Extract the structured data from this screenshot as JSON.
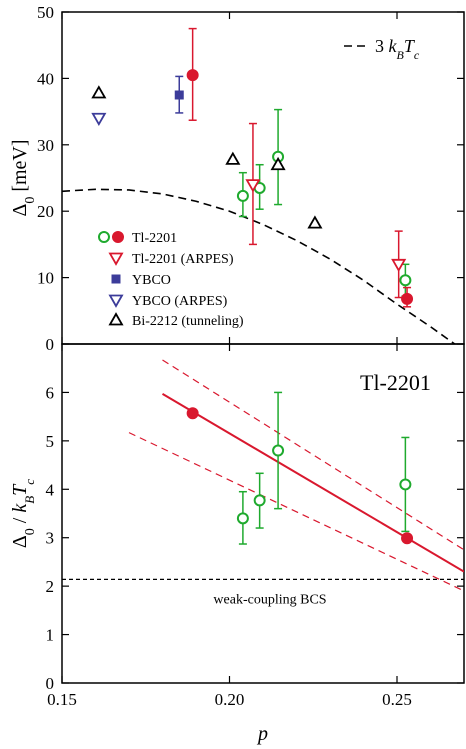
{
  "chart_data": [
    {
      "type": "scatter",
      "ylabel_main": "Δ",
      "ylabel_sub": "0",
      "ylabel_unit": " [meV]",
      "ylim": [
        0,
        50
      ],
      "xlim": [
        0.15,
        0.27
      ],
      "yticks": [
        0,
        10,
        20,
        30,
        40,
        50
      ],
      "ytick_labels": [
        "0",
        "10",
        "20",
        "30",
        "40",
        "50"
      ],
      "annotation": {
        "prefix": "3 ",
        "k": "k",
        "kb": "B",
        "T": "T",
        "Tc": "c"
      },
      "legend": {
        "position": "bottom-left",
        "entries": [
          "Tl-2201",
          "Tl-2201 (ARPES)",
          "YBCO",
          "YBCO (ARPES)",
          "Bi-2212 (tunneling)"
        ]
      },
      "series": [
        {
          "name": "Tl-2201",
          "marker": "circle-open",
          "color": "#1faa2e",
          "points": [
            [
              0.204,
              22.3,
              25.8,
              19.2
            ],
            [
              0.209,
              23.5,
              27.0,
              20.3
            ],
            [
              0.2145,
              28.2,
              35.3,
              21.0
            ],
            [
              0.2525,
              9.6,
              12.0,
              7.2
            ]
          ]
        },
        {
          "name": "Tl-2201",
          "marker": "circle-filled",
          "color": "#d9182e",
          "points": [
            [
              0.189,
              40.5,
              47.5,
              33.7
            ],
            [
              0.253,
              6.8,
              8.5,
              5.6
            ]
          ]
        },
        {
          "name": "Tl-2201 (ARPES)",
          "marker": "triangle-down-open",
          "color": "#d9182e",
          "points": [
            [
              0.207,
              24.0,
              33.2,
              15.0
            ],
            [
              0.2505,
              12.0,
              17.0,
              7.0
            ]
          ]
        },
        {
          "name": "YBCO",
          "marker": "square-filled",
          "color": "#3c3c9a",
          "points": [
            [
              0.185,
              37.5,
              40.3,
              34.8
            ]
          ]
        },
        {
          "name": "YBCO (ARPES)",
          "marker": "triangle-down-open",
          "color": "#3c3c9a",
          "points": [
            [
              0.161,
              34.0,
              null,
              null
            ]
          ]
        },
        {
          "name": "Bi-2212 (tunneling)",
          "marker": "triangle-up-open",
          "color": "#000000",
          "points": [
            [
              0.161,
              37.8,
              null,
              null
            ],
            [
              0.201,
              27.8,
              null,
              null
            ],
            [
              0.2145,
              27.0,
              null,
              null
            ],
            [
              0.2255,
              18.2,
              null,
              null
            ]
          ]
        }
      ],
      "curve": {
        "name": "3 kB Tc",
        "style": "dashed",
        "color": "#000000",
        "x": [
          0.15,
          0.16,
          0.17,
          0.18,
          0.19,
          0.2,
          0.21,
          0.22,
          0.23,
          0.24,
          0.25,
          0.26,
          0.27
        ],
        "y": [
          23.0,
          23.3,
          23.2,
          22.6,
          21.5,
          20.0,
          18.0,
          15.6,
          12.8,
          9.6,
          6.0,
          2.6,
          -1.0
        ]
      }
    },
    {
      "type": "scatter",
      "ylabel_main": "Δ",
      "ylabel_sub": "0",
      "ylabel_k": "k",
      "ylabel_kb": "B",
      "ylabel_T": "T",
      "ylabel_Tc": "c",
      "title": "Tl-2201",
      "xlabel": "p",
      "xlim": [
        0.15,
        0.27
      ],
      "ylim": [
        0,
        7
      ],
      "xticks": [
        0.15,
        0.2,
        0.25
      ],
      "xtick_labels": [
        "0.15",
        "0.20",
        "0.25"
      ],
      "yticks": [
        0,
        1,
        2,
        3,
        4,
        5,
        6
      ],
      "ytick_labels": [
        "0",
        "1",
        "2",
        "3",
        "4",
        "5",
        "6"
      ],
      "series": [
        {
          "name": "Tl-2201",
          "marker": "circle-open",
          "color": "#1faa2e",
          "points": [
            [
              0.204,
              3.4,
              3.95,
              2.87
            ],
            [
              0.209,
              3.77,
              4.33,
              3.2
            ],
            [
              0.2145,
              4.8,
              6.0,
              3.6
            ],
            [
              0.2525,
              4.1,
              5.07,
              3.13
            ]
          ]
        },
        {
          "name": "Tl-2201",
          "marker": "circle-filled",
          "color": "#d9182e",
          "points": [
            [
              0.189,
              5.57,
              null,
              null
            ],
            [
              0.253,
              2.99,
              null,
              null
            ]
          ]
        }
      ],
      "fit_line": {
        "x": [
          0.18,
          0.27
        ],
        "y": [
          5.97,
          2.3
        ],
        "color": "#d9182e"
      },
      "fit_bounds": [
        {
          "x": [
            0.18,
            0.27
          ],
          "y": [
            6.67,
            2.75
          ]
        },
        {
          "x": [
            0.17,
            0.27
          ],
          "y": [
            5.17,
            1.9
          ]
        }
      ],
      "reference_line": {
        "y": 2.14,
        "label": "weak-coupling BCS",
        "color": "#000000"
      }
    }
  ]
}
